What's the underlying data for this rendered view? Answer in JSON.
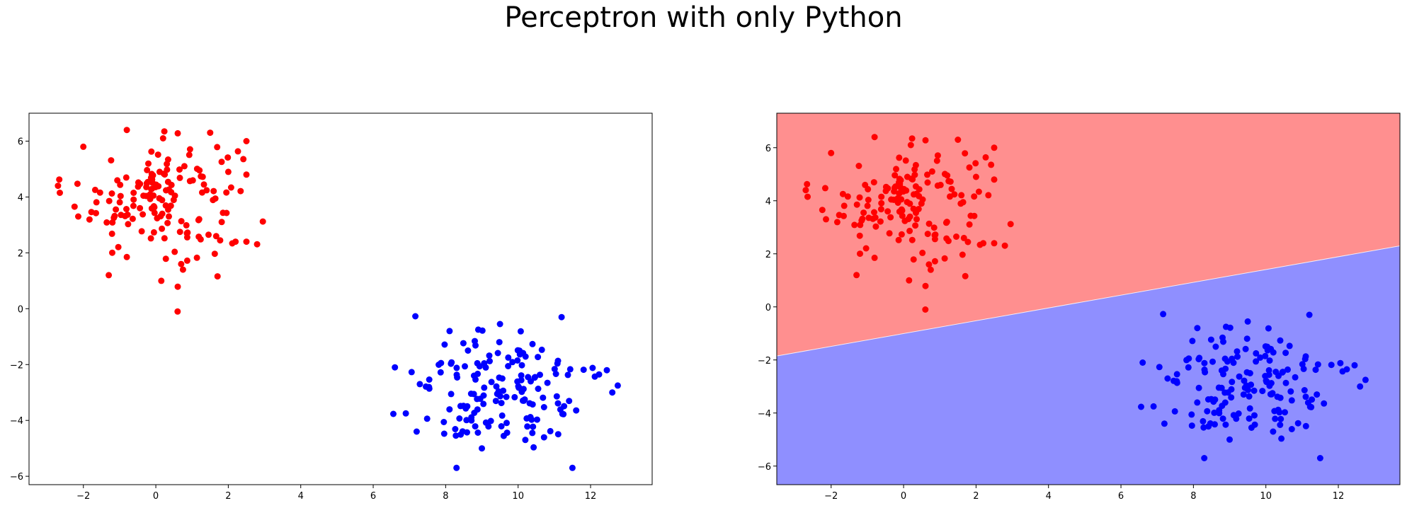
{
  "figure": {
    "title": "Perceptron with only Python"
  },
  "chart_data": [
    {
      "type": "scatter",
      "xlim": [
        -3.5,
        13.7
      ],
      "ylim": [
        -6.3,
        7.0
      ],
      "xticks": [
        -2,
        0,
        2,
        4,
        6,
        8,
        10,
        12
      ],
      "yticks": [
        -6,
        -4,
        -2,
        0,
        2,
        4,
        6
      ],
      "grid": false,
      "series": [
        {
          "color": "#ff0000",
          "cluster": {
            "count": 150,
            "center": [
              0.1,
              4.0
            ],
            "spread": [
              1.1,
              1.05
            ]
          },
          "points": [
            [
              -2.7,
              4.4
            ],
            [
              -2.65,
              4.15
            ],
            [
              -2.0,
              5.8
            ],
            [
              -0.8,
              6.4
            ],
            [
              0.2,
              6.1
            ],
            [
              1.5,
              6.3
            ],
            [
              2.5,
              6.0
            ],
            [
              -1.3,
              1.2
            ],
            [
              0.6,
              -0.1
            ],
            [
              -0.8,
              1.85
            ],
            [
              0.7,
              1.6
            ],
            [
              0.75,
              1.4
            ],
            [
              2.2,
              2.4
            ],
            [
              2.5,
              2.4
            ],
            [
              2.5,
              4.8
            ]
          ]
        },
        {
          "color": "#0000ff",
          "cluster": {
            "count": 150,
            "center": [
              9.6,
              -3.0
            ],
            "spread": [
              1.1,
              0.95
            ]
          },
          "points": [
            [
              6.6,
              -2.1
            ],
            [
              6.9,
              -3.75
            ],
            [
              7.2,
              -4.4
            ],
            [
              8.3,
              -5.7
            ],
            [
              11.5,
              -5.7
            ],
            [
              11.2,
              -0.3
            ],
            [
              12.6,
              -3.0
            ],
            [
              12.75,
              -2.75
            ],
            [
              12.45,
              -2.2
            ],
            [
              9.5,
              -0.55
            ],
            [
              8.9,
              -0.75
            ],
            [
              10.2,
              -4.7
            ],
            [
              9.0,
              -5.0
            ]
          ]
        }
      ]
    },
    {
      "type": "scatter",
      "xlim": [
        -3.5,
        13.7
      ],
      "ylim": [
        -6.7,
        7.3
      ],
      "xticks": [
        -2,
        0,
        2,
        4,
        6,
        8,
        10,
        12
      ],
      "yticks": [
        -6,
        -4,
        -2,
        0,
        2,
        4,
        6
      ],
      "grid": false,
      "decision_boundary": {
        "x": [
          -3.5,
          13.7
        ],
        "y": [
          -1.85,
          2.3
        ],
        "upper_color": "#ff8f8f",
        "lower_color": "#8f8fff"
      },
      "series_ref": "same as first chart"
    }
  ]
}
